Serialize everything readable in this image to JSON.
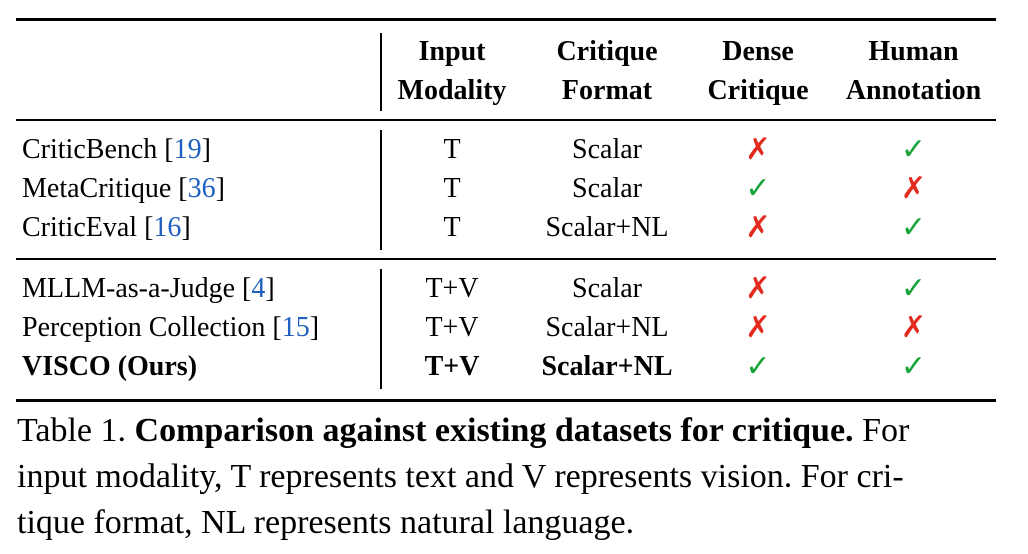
{
  "table": {
    "headers": {
      "modality": [
        "Input",
        "Modality"
      ],
      "format": [
        "Critique",
        "Format"
      ],
      "dense": [
        "Dense",
        "Critique"
      ],
      "human": [
        "Human",
        "Annotation"
      ]
    },
    "group1": [
      {
        "name": "CriticBench [",
        "ref": "19",
        "close": "]",
        "modality": "T",
        "format": "Scalar",
        "dense": false,
        "human": true
      },
      {
        "name": "MetaCritique [",
        "ref": "36",
        "close": "]",
        "modality": "T",
        "format": "Scalar",
        "dense": true,
        "human": false
      },
      {
        "name": "CriticEval [",
        "ref": "16",
        "close": "]",
        "modality": "T",
        "format": "Scalar+NL",
        "dense": false,
        "human": true
      }
    ],
    "group2": [
      {
        "name": "MLLM-as-a-Judge [",
        "ref": "4",
        "close": "]",
        "modality": "T+V",
        "format": "Scalar",
        "dense": false,
        "human": true
      },
      {
        "name": "Perception Collection [",
        "ref": "15",
        "close": "]",
        "modality": "T+V",
        "format": "Scalar+NL",
        "dense": false,
        "human": false
      },
      {
        "name": "VISCO (Ours)",
        "ref": "",
        "close": "",
        "modality": "T+V",
        "format": "Scalar+NL",
        "dense": true,
        "human": true
      }
    ],
    "marks": {
      "yes": "✓",
      "no": "✗"
    },
    "colors": {
      "yes": "#1aa33a",
      "no": "#e22a1f",
      "ref": "#1f5fbf"
    }
  },
  "caption": {
    "prefix": "Table 1. ",
    "bold": "Comparison against existing datasets for critique.",
    "rest1": " For",
    "line2": "input modality, T represents text and V represents vision. For cri-",
    "line3": "tique format, NL represents natural language."
  }
}
